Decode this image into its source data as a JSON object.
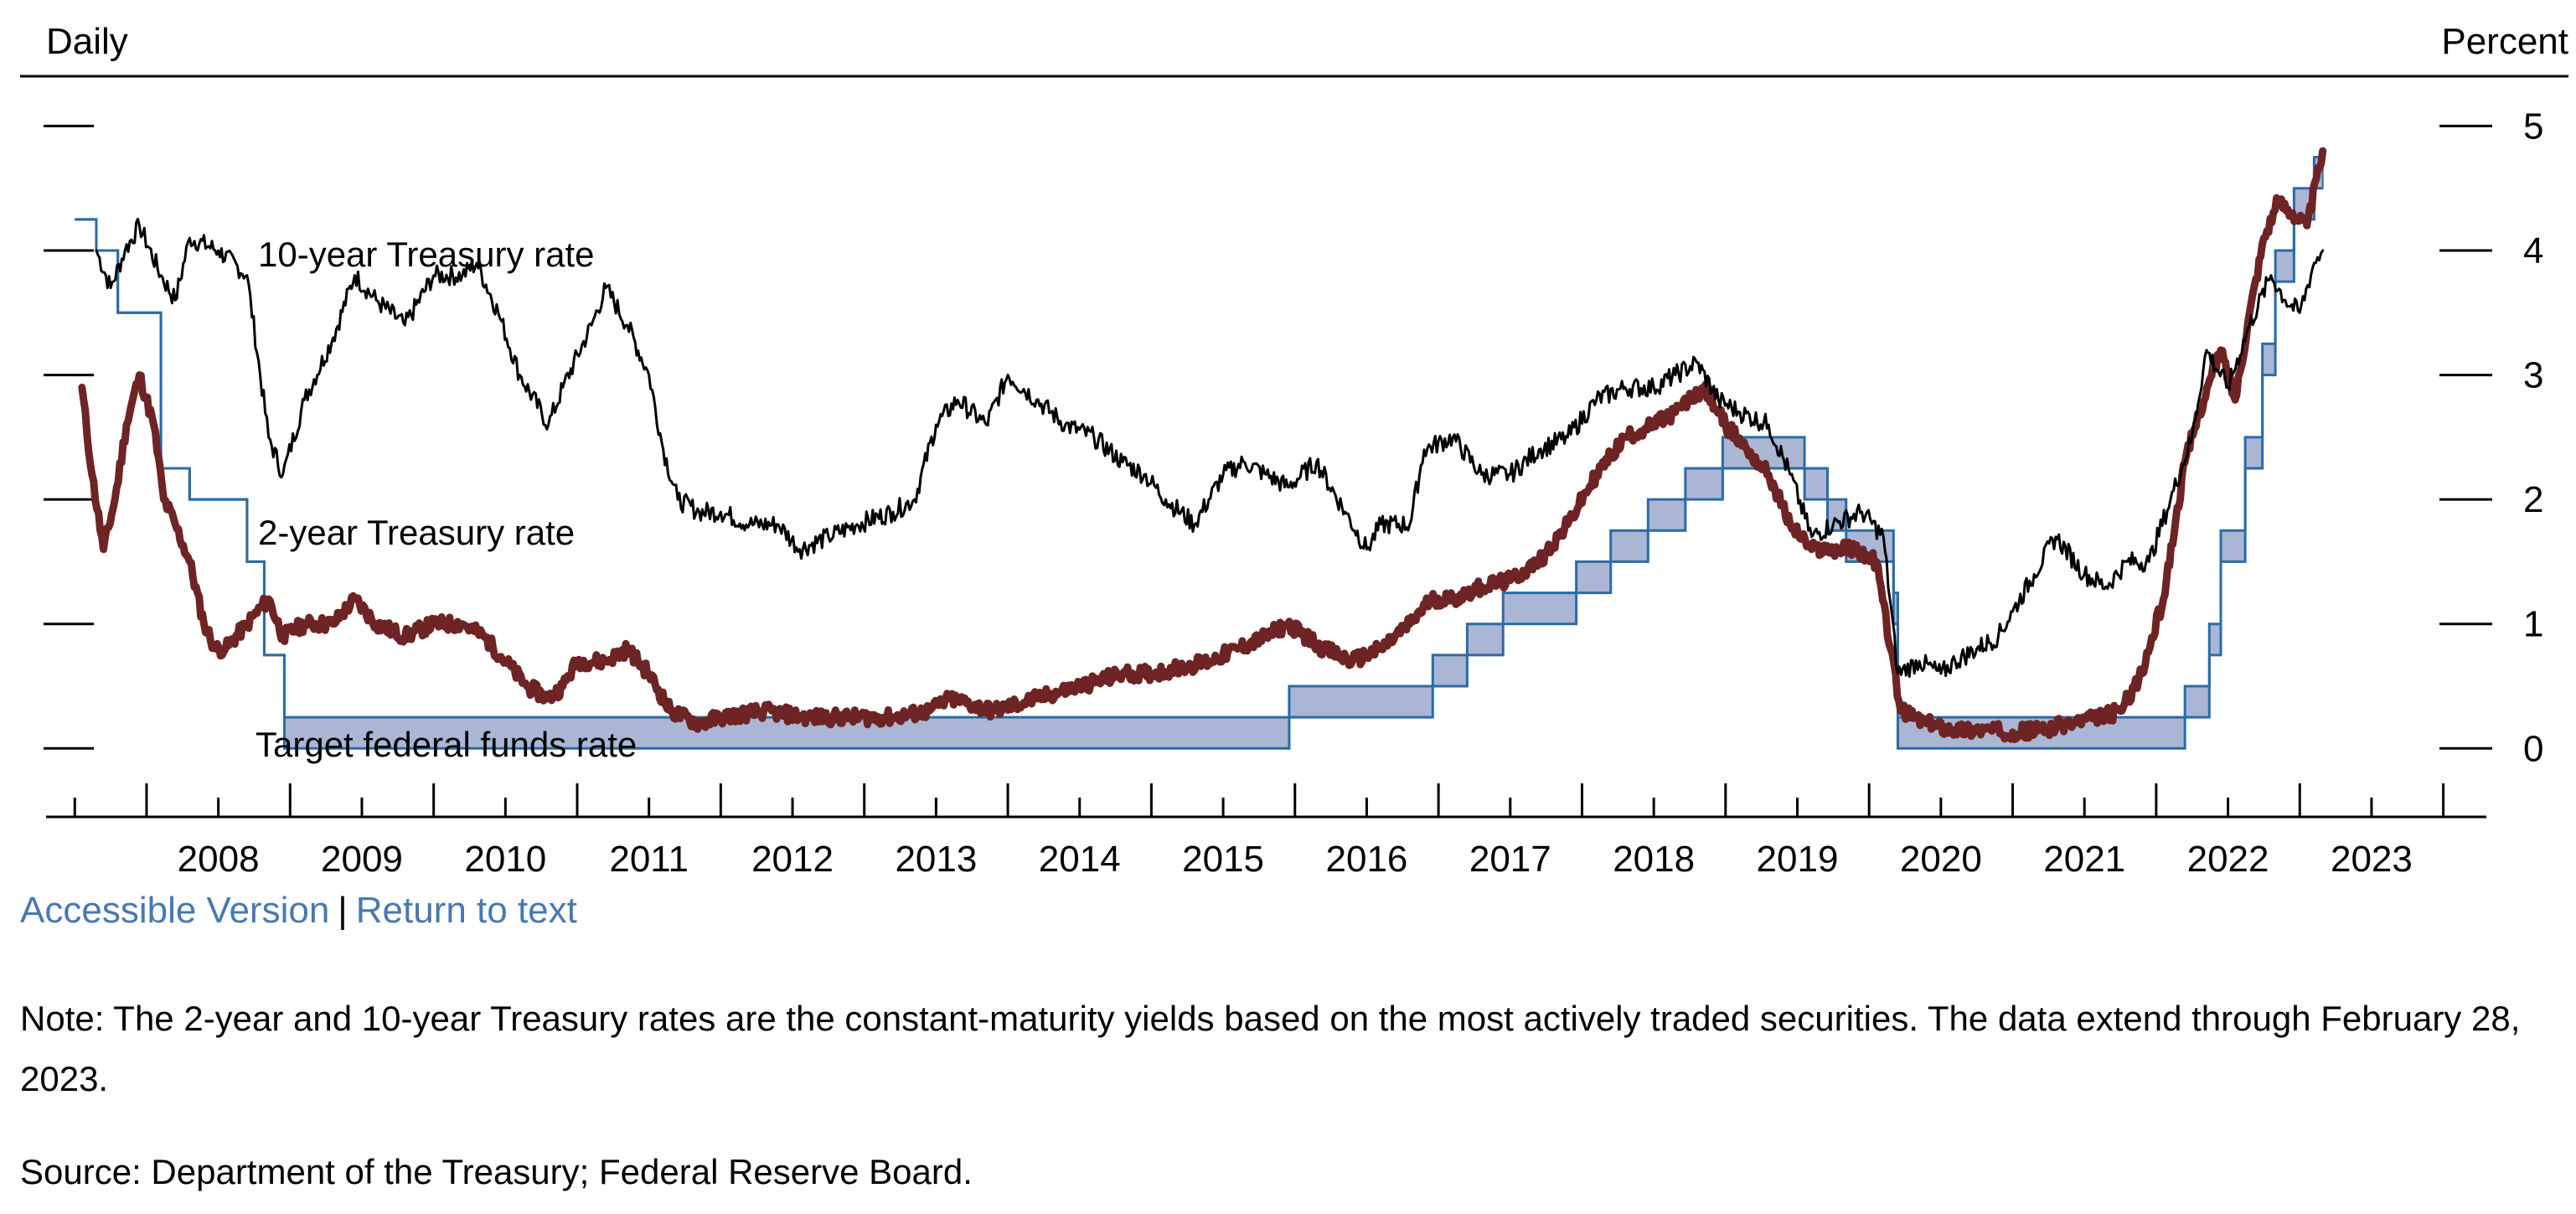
{
  "chart_data": {
    "type": "line",
    "frequency_label": "Daily",
    "unit_label": "Percent",
    "x_tick_labels": [
      "2008",
      "2009",
      "2010",
      "2011",
      "2012",
      "2013",
      "2014",
      "2015",
      "2016",
      "2017",
      "2018",
      "2019",
      "2020",
      "2021",
      "2022",
      "2023"
    ],
    "xlim": [
      2007.3,
      2024.3
    ],
    "ylim": [
      -0.55,
      5.4
    ],
    "y_ticks": [
      0,
      1,
      2,
      3,
      4,
      5
    ],
    "series": [
      {
        "name": "10-year Treasury rate",
        "label": "10-year Treasury rate",
        "color": "#000000",
        "x": [
          2007.65,
          2007.75,
          2007.85,
          2007.95,
          2008.1,
          2008.2,
          2008.3,
          2008.5,
          2008.7,
          2008.85,
          2008.95,
          2009.1,
          2009.3,
          2009.45,
          2009.6,
          2009.8,
          2010.0,
          2010.2,
          2010.3,
          2010.45,
          2010.6,
          2010.8,
          2010.9,
          2011.1,
          2011.2,
          2011.35,
          2011.5,
          2011.6,
          2011.7,
          2011.85,
          2012.0,
          2012.2,
          2012.4,
          2012.55,
          2012.75,
          2012.95,
          2013.2,
          2013.35,
          2013.5,
          2013.65,
          2013.85,
          2014.0,
          2014.2,
          2014.4,
          2014.6,
          2014.8,
          2014.95,
          2015.1,
          2015.3,
          2015.5,
          2015.65,
          2015.8,
          2015.95,
          2016.15,
          2016.35,
          2016.5,
          2016.6,
          2016.8,
          2016.9,
          2017.1,
          2017.3,
          2017.5,
          2017.7,
          2017.9,
          2018.1,
          2018.3,
          2018.5,
          2018.65,
          2018.8,
          2018.95,
          2019.1,
          2019.3,
          2019.45,
          2019.6,
          2019.75,
          2019.95,
          2020.1,
          2020.2,
          2020.35,
          2020.5,
          2020.6,
          2020.75,
          2020.9,
          2021.0,
          2021.15,
          2021.3,
          2021.5,
          2021.65,
          2021.8,
          2021.95,
          2022.1,
          2022.25,
          2022.35,
          2022.5,
          2022.65,
          2022.8,
          2022.9,
          2023.0,
          2023.1,
          2023.16
        ],
        "values": [
          4.0,
          3.7,
          4.0,
          4.2,
          3.8,
          3.6,
          4.1,
          4.0,
          3.8,
          2.5,
          2.2,
          2.8,
          3.3,
          3.8,
          3.6,
          3.4,
          3.8,
          3.8,
          3.9,
          3.5,
          3.0,
          2.6,
          2.9,
          3.4,
          3.7,
          3.4,
          3.0,
          2.4,
          2.0,
          1.9,
          1.9,
          1.8,
          1.8,
          1.6,
          1.7,
          1.8,
          1.9,
          2.0,
          2.6,
          2.8,
          2.6,
          3.0,
          2.8,
          2.6,
          2.5,
          2.3,
          2.2,
          2.0,
          1.8,
          2.2,
          2.3,
          2.2,
          2.1,
          2.3,
          1.9,
          1.6,
          1.8,
          1.8,
          2.4,
          2.5,
          2.2,
          2.2,
          2.4,
          2.5,
          2.8,
          2.9,
          2.9,
          3.0,
          3.1,
          2.8,
          2.7,
          2.6,
          2.2,
          1.7,
          1.8,
          1.9,
          1.7,
          0.6,
          0.7,
          0.6,
          0.7,
          0.8,
          0.9,
          1.1,
          1.4,
          1.7,
          1.4,
          1.3,
          1.5,
          1.5,
          2.0,
          2.5,
          3.2,
          2.9,
          3.4,
          3.8,
          3.6,
          3.5,
          3.9,
          4.0
        ]
      },
      {
        "name": "2-year Treasury rate",
        "label": "2-year Treasury rate",
        "color": "#6e2424",
        "x": [
          2007.55,
          2007.62,
          2007.7,
          2007.78,
          2007.86,
          2007.95,
          2008.05,
          2008.12,
          2008.2,
          2008.3,
          2008.4,
          2008.48,
          2008.55,
          2008.7,
          2008.85,
          2008.95,
          2009.1,
          2009.3,
          2009.45,
          2009.6,
          2009.8,
          2010.0,
          2010.2,
          2010.35,
          2010.5,
          2010.65,
          2010.8,
          2010.9,
          2011.0,
          2011.2,
          2011.35,
          2011.5,
          2011.65,
          2011.85,
          2012.0,
          2012.3,
          2012.6,
          2012.9,
          2013.2,
          2013.45,
          2013.6,
          2013.9,
          2014.2,
          2014.5,
          2014.8,
          2015.0,
          2015.2,
          2015.4,
          2015.6,
          2015.8,
          2015.95,
          2016.2,
          2016.4,
          2016.6,
          2016.8,
          2016.95,
          2017.1,
          2017.3,
          2017.5,
          2017.7,
          2017.9,
          2018.1,
          2018.3,
          2018.5,
          2018.65,
          2018.85,
          2019.0,
          2019.15,
          2019.3,
          2019.45,
          2019.6,
          2019.75,
          2019.9,
          2020.05,
          2020.15,
          2020.22,
          2020.4,
          2020.6,
          2020.8,
          2021.0,
          2021.2,
          2021.4,
          2021.6,
          2021.75,
          2021.9,
          2022.05,
          2022.2,
          2022.3,
          2022.45,
          2022.55,
          2022.65,
          2022.75,
          2022.85,
          2022.95,
          2023.05,
          2023.16
        ],
        "values": [
          2.9,
          2.2,
          1.6,
          2.0,
          2.6,
          3.0,
          2.6,
          2.0,
          1.8,
          1.5,
          1.0,
          0.8,
          0.8,
          1.0,
          1.2,
          0.9,
          1.0,
          1.0,
          1.2,
          1.0,
          0.9,
          1.0,
          1.0,
          0.9,
          0.7,
          0.5,
          0.4,
          0.5,
          0.7,
          0.7,
          0.8,
          0.6,
          0.3,
          0.2,
          0.25,
          0.3,
          0.25,
          0.25,
          0.25,
          0.3,
          0.4,
          0.3,
          0.4,
          0.5,
          0.6,
          0.6,
          0.65,
          0.7,
          0.8,
          0.9,
          1.0,
          0.8,
          0.7,
          0.8,
          1.0,
          1.2,
          1.2,
          1.3,
          1.35,
          1.5,
          1.8,
          2.2,
          2.5,
          2.6,
          2.7,
          2.9,
          2.6,
          2.4,
          2.2,
          1.8,
          1.6,
          1.6,
          1.6,
          1.5,
          0.8,
          0.3,
          0.2,
          0.15,
          0.15,
          0.13,
          0.15,
          0.2,
          0.25,
          0.3,
          0.6,
          1.2,
          2.3,
          2.7,
          3.2,
          2.8,
          3.5,
          4.1,
          4.4,
          4.3,
          4.2,
          4.8
        ]
      },
      {
        "name": "Target federal funds rate",
        "label": "Target federal funds rate",
        "color": "#2a6ba6",
        "band_color": "#aab6d4",
        "shape": "step-band",
        "x": [
          2007.5,
          2007.55,
          2007.65,
          2007.8,
          2008.1,
          2008.3,
          2008.7,
          2008.82,
          2008.96,
          2015.96,
          2016.96,
          2017.2,
          2017.45,
          2017.96,
          2018.2,
          2018.46,
          2018.72,
          2018.98,
          2019.55,
          2019.71,
          2019.84,
          2020.17,
          2020.2,
          2022.2,
          2022.37,
          2022.45,
          2022.62,
          2022.74,
          2022.83,
          2022.96,
          2023.1
        ],
        "lower": [
          4.25,
          4.25,
          4.0,
          3.5,
          2.25,
          2.0,
          1.5,
          0.75,
          0.0,
          0.25,
          0.5,
          0.75,
          1.0,
          1.25,
          1.5,
          1.75,
          2.0,
          2.25,
          2.0,
          1.75,
          1.5,
          1.0,
          0.0,
          0.25,
          0.75,
          1.5,
          2.25,
          3.0,
          3.75,
          4.25,
          4.5
        ],
        "upper": [
          4.25,
          4.25,
          4.0,
          3.5,
          2.25,
          2.0,
          1.5,
          0.75,
          0.25,
          0.5,
          0.75,
          1.0,
          1.25,
          1.5,
          1.75,
          2.0,
          2.25,
          2.5,
          2.25,
          2.0,
          1.75,
          1.25,
          0.25,
          0.5,
          1.0,
          1.75,
          2.5,
          3.25,
          4.0,
          4.5,
          4.75
        ]
      }
    ]
  },
  "links": {
    "accessible": "Accessible Version",
    "separator": "|",
    "return": "Return to text"
  },
  "note": "Note: The 2-year and 10-year Treasury rates are the constant-maturity yields based on the most actively traded securities. The data extend through February 28, 2023.",
  "source": "Source: Department of the Treasury; Federal Reserve Board."
}
